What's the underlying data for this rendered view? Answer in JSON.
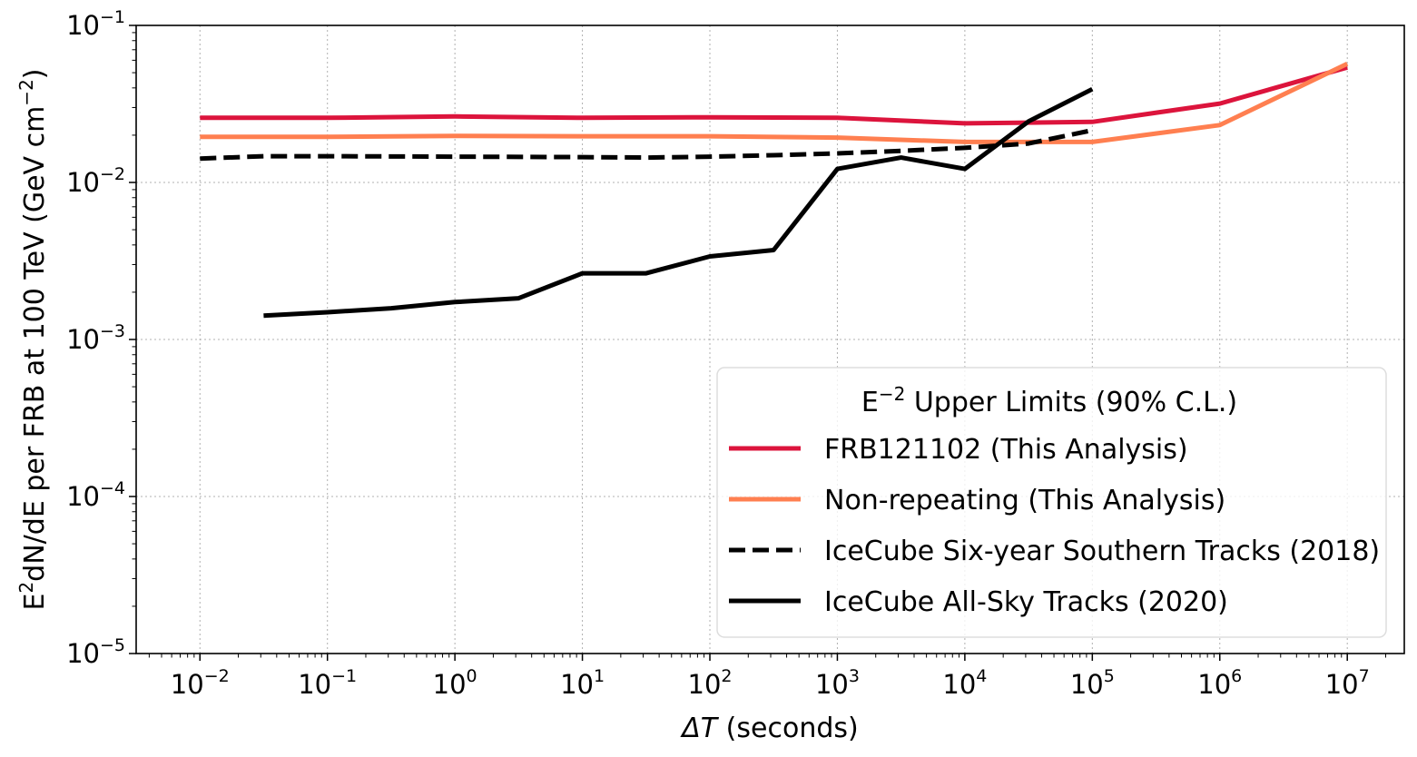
{
  "chart_data": {
    "type": "line",
    "xscale": "log",
    "yscale": "log",
    "xlim": [
      0.00316,
      28000000
    ],
    "ylim": [
      1e-05,
      0.1
    ],
    "grid": true,
    "xlabel_symbol": "ΔT",
    "xlabel_rest": " (seconds)",
    "ylabel_prefix": "E",
    "ylabel_sup1": "2",
    "ylabel_main": "dN/dE per FRB at 100 TeV (GeV cm",
    "ylabel_sup2": "−2",
    "ylabel_suffix": ")",
    "x_ticks": [
      {
        "value": 0.01,
        "base": "10",
        "exp": "−2"
      },
      {
        "value": 0.1,
        "base": "10",
        "exp": "−1"
      },
      {
        "value": 1,
        "base": "10",
        "exp": "0"
      },
      {
        "value": 10,
        "base": "10",
        "exp": "1"
      },
      {
        "value": 100,
        "base": "10",
        "exp": "2"
      },
      {
        "value": 1000,
        "base": "10",
        "exp": "3"
      },
      {
        "value": 10000,
        "base": "10",
        "exp": "4"
      },
      {
        "value": 100000,
        "base": "10",
        "exp": "5"
      },
      {
        "value": 1000000,
        "base": "10",
        "exp": "6"
      },
      {
        "value": 10000000,
        "base": "10",
        "exp": "7"
      }
    ],
    "y_ticks": [
      {
        "value": 1e-05,
        "base": "10",
        "exp": "−5"
      },
      {
        "value": 0.0001,
        "base": "10",
        "exp": "−4"
      },
      {
        "value": 0.001,
        "base": "10",
        "exp": "−3"
      },
      {
        "value": 0.01,
        "base": "10",
        "exp": "−2"
      },
      {
        "value": 0.1,
        "base": "10",
        "exp": "−1"
      }
    ],
    "legend": {
      "placement": "lower-right",
      "title_prefix": "E",
      "title_sup": "−2",
      "title_rest": " Upper Limits (90% C.L.)"
    },
    "series": [
      {
        "name": "FRB121102 (This Analysis)",
        "color": "#dc143c",
        "dash": "solid",
        "x": [
          0.01,
          0.1,
          1,
          10,
          100,
          1000,
          10000,
          100000,
          1000000,
          10000000
        ],
        "y": [
          0.0258,
          0.0258,
          0.0263,
          0.0258,
          0.026,
          0.0258,
          0.0238,
          0.0243,
          0.0318,
          0.054
        ]
      },
      {
        "name": "Non-repeating (This Analysis)",
        "color": "#ff7f50",
        "dash": "solid",
        "x": [
          0.01,
          0.1,
          1,
          10,
          100,
          1000,
          10000,
          100000,
          1000000,
          10000000
        ],
        "y": [
          0.0195,
          0.0195,
          0.0198,
          0.0197,
          0.0197,
          0.0193,
          0.0181,
          0.0181,
          0.0232,
          0.057
        ]
      },
      {
        "name": "IceCube Six-year Southern Tracks (2018)",
        "color": "#000000",
        "dash": "dashed",
        "x": [
          0.01,
          0.0316,
          0.1,
          1,
          10,
          31.6,
          100,
          316,
          1000,
          3162,
          10000,
          31623,
          100000
        ],
        "y": [
          0.0142,
          0.0147,
          0.0147,
          0.0146,
          0.0145,
          0.0144,
          0.0146,
          0.0149,
          0.0153,
          0.0159,
          0.0166,
          0.0177,
          0.0215
        ]
      },
      {
        "name": "IceCube All-Sky Tracks (2020)",
        "color": "#000000",
        "dash": "solid",
        "x": [
          0.0316,
          0.1,
          0.316,
          1,
          3.16,
          10,
          31.6,
          100,
          316,
          1000,
          3162,
          10000,
          31623,
          100000
        ],
        "y": [
          0.00142,
          0.00149,
          0.00158,
          0.00173,
          0.00183,
          0.00264,
          0.00264,
          0.00338,
          0.00371,
          0.0122,
          0.0144,
          0.0122,
          0.0245,
          0.0393
        ]
      }
    ]
  }
}
